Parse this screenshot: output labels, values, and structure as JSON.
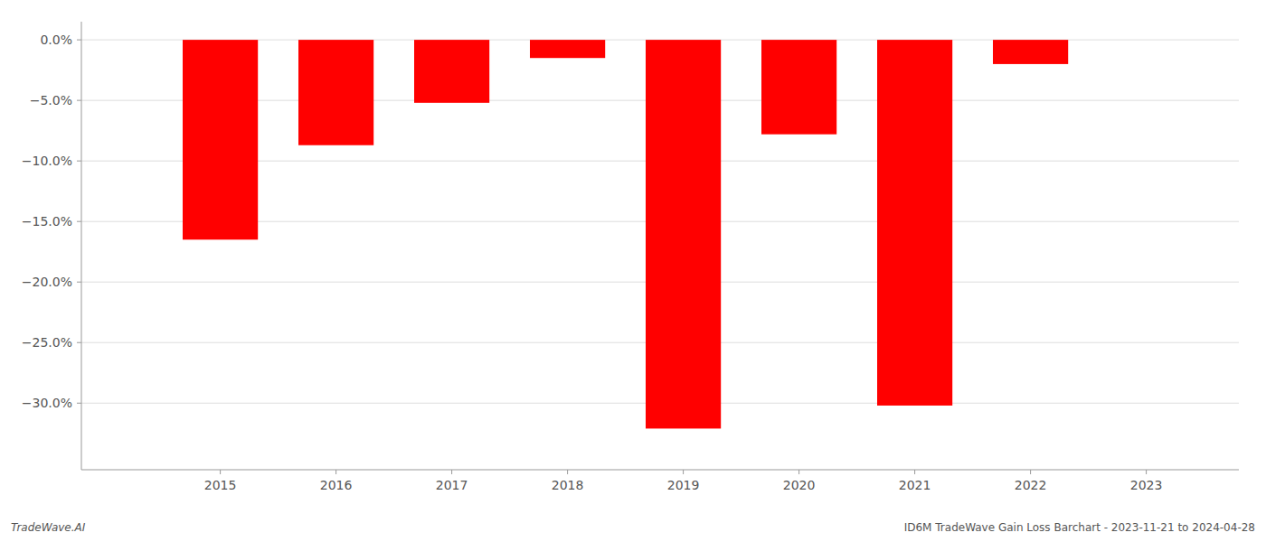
{
  "chart_data": {
    "type": "bar",
    "x": [
      2015,
      2016,
      2017,
      2018,
      2019,
      2020,
      2021,
      2022
    ],
    "values": [
      -16.5,
      -8.7,
      -5.2,
      -1.5,
      -32.1,
      -7.8,
      -30.2,
      -2.0
    ],
    "color": "#ff0000",
    "xlim": [
      2013.8,
      2023.8
    ],
    "xticks": [
      2015,
      2016,
      2017,
      2018,
      2019,
      2020,
      2021,
      2022,
      2023
    ],
    "ylim": [
      -35.5,
      1.5
    ],
    "yticks": [
      {
        "value": 0.0,
        "label": "0.0%"
      },
      {
        "value": -5.0,
        "label": "−5.0%"
      },
      {
        "value": -10.0,
        "label": "−10.0%"
      },
      {
        "value": -15.0,
        "label": "−15.0%"
      },
      {
        "value": -20.0,
        "label": "−20.0%"
      },
      {
        "value": -25.0,
        "label": "−25.0%"
      },
      {
        "value": -30.0,
        "label": "−30.0%"
      }
    ],
    "grid": true,
    "annotations": [
      "TradeWave.AI",
      "ID6M TradeWave Gain Loss Barchart - 2023-11-21 to 2024-04-28"
    ]
  }
}
